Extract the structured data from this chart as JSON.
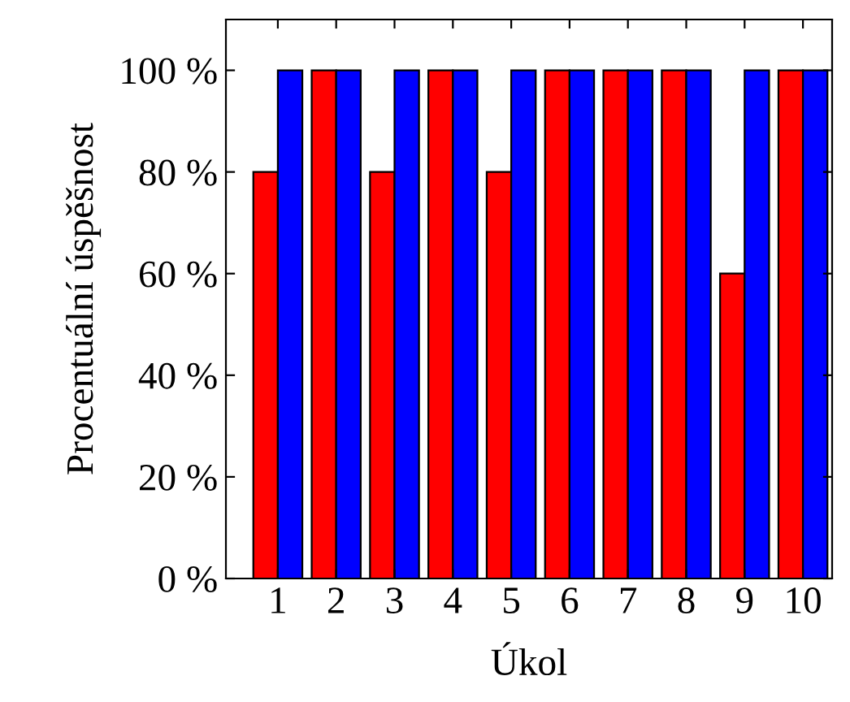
{
  "chart_data": {
    "type": "bar",
    "xlabel": "Úkol",
    "ylabel": "Procentuální úspěšnost",
    "categories": [
      "1",
      "2",
      "3",
      "4",
      "5",
      "6",
      "7",
      "8",
      "9",
      "10"
    ],
    "series": [
      {
        "color": "#ff0000",
        "values": [
          80,
          100,
          80,
          100,
          80,
          100,
          100,
          100,
          60,
          100
        ]
      },
      {
        "color": "#0000ff",
        "values": [
          100,
          100,
          100,
          100,
          100,
          100,
          100,
          100,
          100,
          100
        ]
      }
    ],
    "ylim": [
      0,
      110
    ],
    "yticks": [
      {
        "value": 0,
        "label": "0 %"
      },
      {
        "value": 20,
        "label": "20 %"
      },
      {
        "value": 40,
        "label": "40 %"
      },
      {
        "value": 60,
        "label": "60 %"
      },
      {
        "value": 80,
        "label": "80 %"
      },
      {
        "value": 100,
        "label": "100 %"
      }
    ],
    "grid": false,
    "legend": false
  }
}
